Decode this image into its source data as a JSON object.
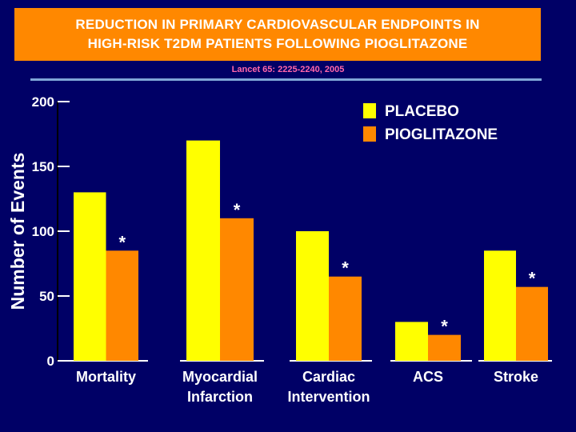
{
  "title": "REDUCTION IN PRIMARY CARDIOVASCULAR ENDPOINTS IN\nHIGH-RISK T2DM PATIENTS FOLLOWING PIOGLITAZONE",
  "citation": "Lancet 65: 2225-2240, 2005",
  "colors": {
    "background": "#000066",
    "title_box": "#FF8800",
    "placebo": "#FFFF00",
    "pioglitazone": "#FF8800",
    "rule": "#7FA6D8",
    "citation": "#FF66AA"
  },
  "chart_data": {
    "type": "bar",
    "title": "REDUCTION IN PRIMARY CARDIOVASCULAR ENDPOINTS IN HIGH-RISK T2DM PATIENTS FOLLOWING PIOGLITAZONE",
    "ylabel": "Number of Events",
    "xlabel": "",
    "ylim": [
      0,
      200
    ],
    "yticks": [
      0,
      50,
      100,
      150,
      200
    ],
    "categories": [
      [
        "Mortality"
      ],
      [
        "Myocardial",
        "Infarction"
      ],
      [
        "Cardiac",
        "Intervention"
      ],
      [
        "ACS"
      ],
      [
        "Stroke"
      ]
    ],
    "series": [
      {
        "name": "PLACEBO",
        "values": [
          130,
          170,
          100,
          30,
          85
        ]
      },
      {
        "name": "PIOGLITAZONE",
        "values": [
          85,
          110,
          65,
          20,
          57
        ]
      }
    ],
    "annotations": [
      "*",
      "*",
      "*",
      "*",
      "*"
    ],
    "legend": "top-right",
    "grid": false
  }
}
